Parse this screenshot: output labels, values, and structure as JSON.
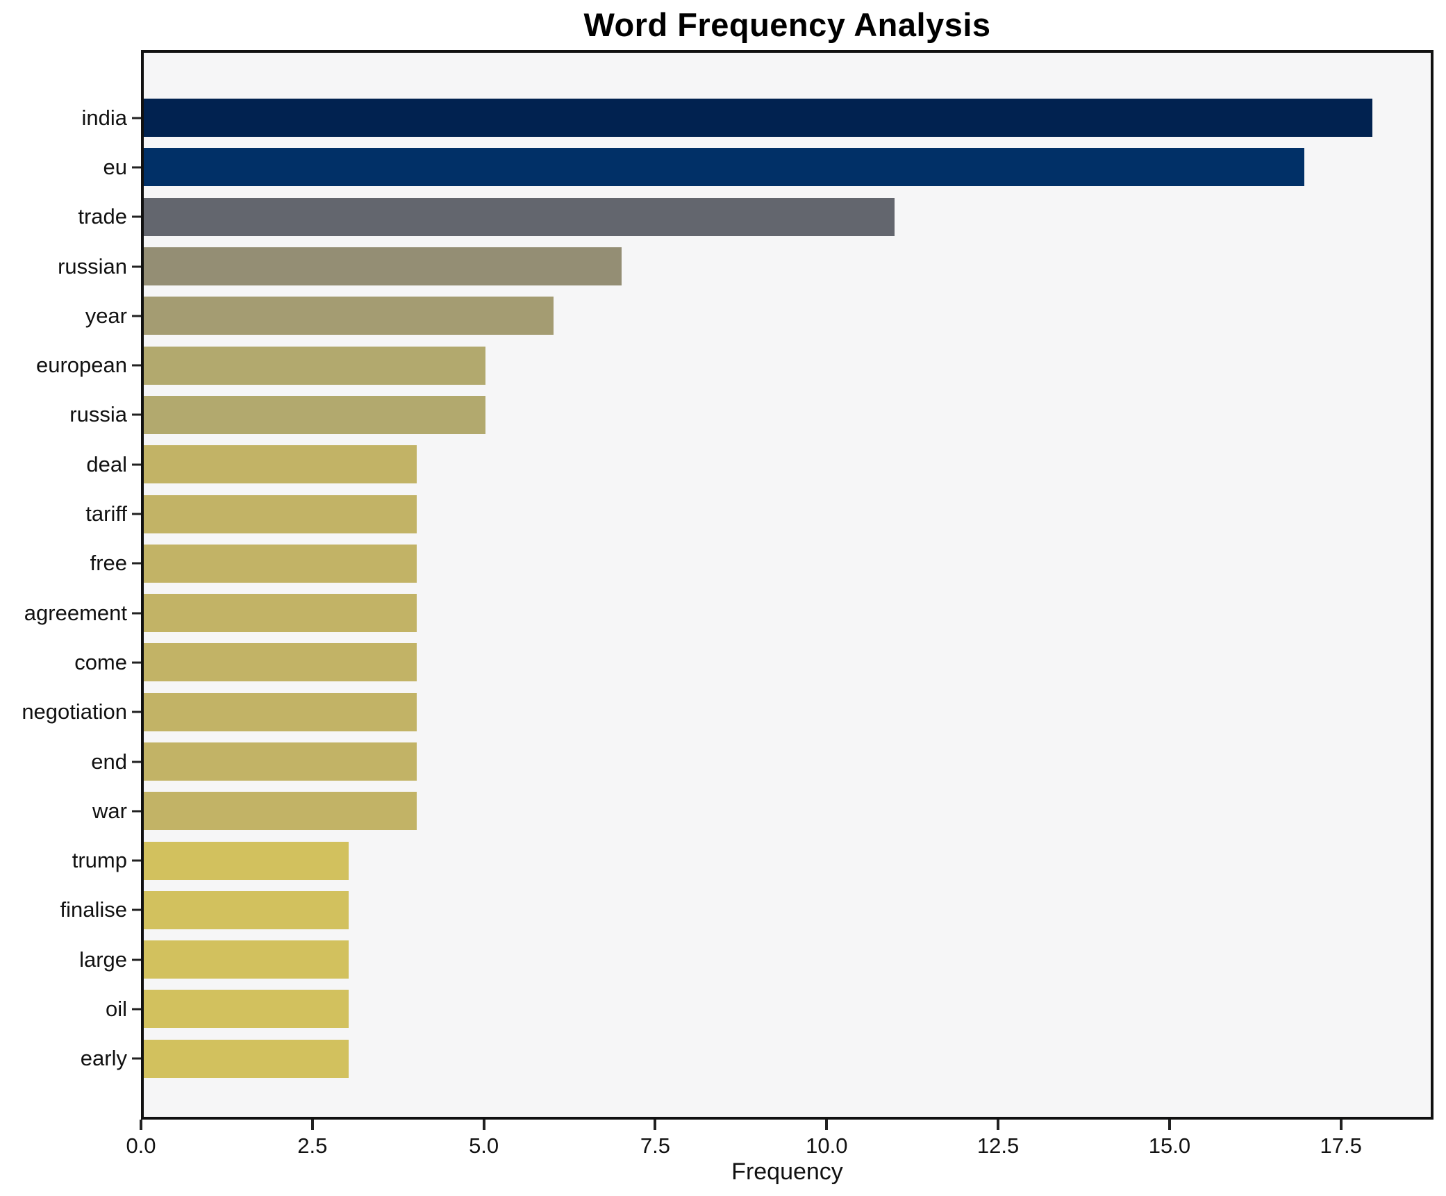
{
  "figure": {
    "background": "#ffffff",
    "plot_background": "#f6f6f7",
    "spine_color": "#111111",
    "tick_color": "#222222",
    "text_color": "#111111"
  },
  "chart_data": {
    "type": "bar",
    "orientation": "horizontal",
    "title": "Word Frequency Analysis",
    "xlabel": "Frequency",
    "ylabel": "",
    "grid": false,
    "legend": null,
    "categories": [
      "india",
      "eu",
      "trade",
      "russian",
      "year",
      "european",
      "russia",
      "deal",
      "tariff",
      "free",
      "agreement",
      "come",
      "negotiation",
      "end",
      "war",
      "trump",
      "finalise",
      "large",
      "oil",
      "early"
    ],
    "values": [
      18,
      17,
      11,
      7,
      6,
      5,
      5,
      4,
      4,
      4,
      4,
      4,
      4,
      4,
      4,
      3,
      3,
      3,
      3,
      3
    ],
    "bar_colors": [
      "#012250",
      "#013067",
      "#63666e",
      "#948e74",
      "#a49c72",
      "#b2a96e",
      "#b2a96e",
      "#c2b366",
      "#c2b366",
      "#c2b366",
      "#c2b366",
      "#c2b366",
      "#c2b366",
      "#c2b366",
      "#c2b366",
      "#d2c15e",
      "#d2c15e",
      "#d2c15e",
      "#d2c15e",
      "#d2c15e"
    ],
    "xlim": [
      0,
      18.85
    ],
    "xticks": [
      {
        "value": 0,
        "label": "0.0"
      },
      {
        "value": 2.5,
        "label": "2.5"
      },
      {
        "value": 5,
        "label": "5.0"
      },
      {
        "value": 7.5,
        "label": "7.5"
      },
      {
        "value": 10,
        "label": "10.0"
      },
      {
        "value": 12.5,
        "label": "12.5"
      },
      {
        "value": 15,
        "label": "15.0"
      },
      {
        "value": 17.5,
        "label": "17.5"
      }
    ]
  }
}
